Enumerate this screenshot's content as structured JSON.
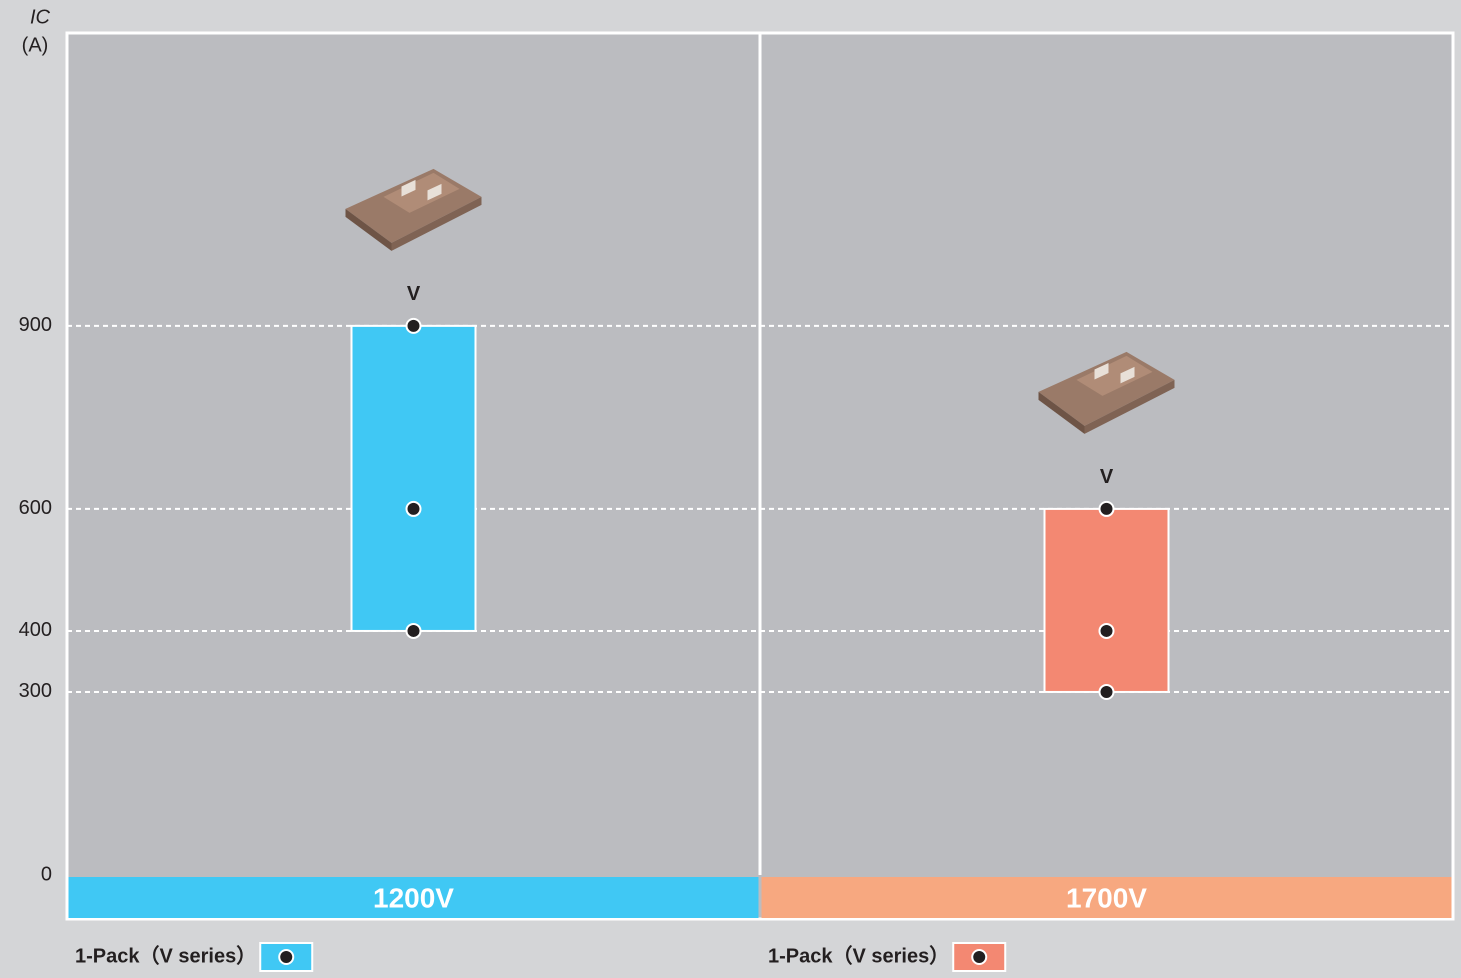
{
  "chart_data": {
    "type": "range",
    "y_label": "IC",
    "y_unit": "(A)",
    "ylim": [
      0,
      1380
    ],
    "yticks": [
      0,
      300,
      400,
      600,
      900
    ],
    "grid": true,
    "panels": [
      {
        "category": "1200V",
        "category_color": "#40c8f4",
        "series": {
          "name": "1-Pack（V series）",
          "color": "#40c8f4",
          "label": "V",
          "values": [
            400,
            600,
            900
          ]
        }
      },
      {
        "category": "1700V",
        "category_color": "#f7a880",
        "series": {
          "name": "1-Pack（V series）",
          "color": "#f38872",
          "label": "V",
          "values": [
            300,
            400,
            600
          ]
        }
      }
    ]
  }
}
